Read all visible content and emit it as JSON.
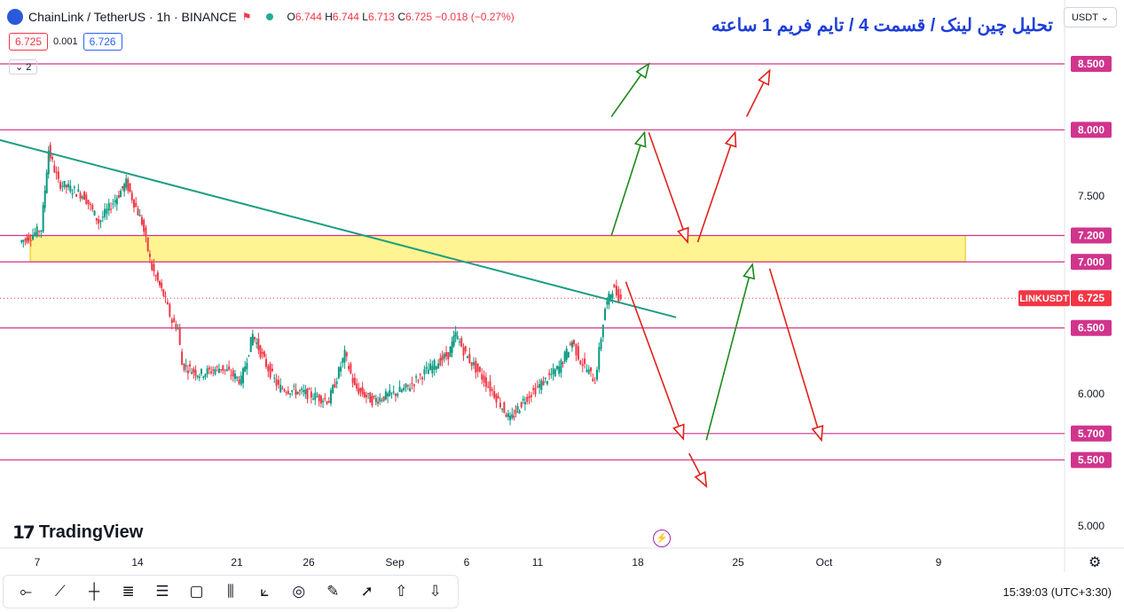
{
  "header": {
    "symbol": "ChainLink / TetherUS · 1h · BINANCE",
    "open_label": "O",
    "open": "6.744",
    "high_label": "H",
    "high": "6.744",
    "low_label": "L",
    "low": "6.713",
    "close_label": "C",
    "close": "6.725",
    "change": "−0.018 (−0.27%)"
  },
  "trade": {
    "sell": "6.725",
    "spread": "0.001",
    "buy": "6.726"
  },
  "layers_badge": "2",
  "title": "تحلیل چین لینک / قسمت 4 / تایم فریم 1 ساعته",
  "currency": "USDT",
  "brand": "TradingView",
  "clock": "15:39:03",
  "timezone": "(UTC+3:30)",
  "toolbar_icons": [
    "crosshair-icon",
    "trendline-icon",
    "vertical-line-icon",
    "fib-icon",
    "channel-icon",
    "rectangle-icon",
    "pitchfork-icon",
    "pattern-icon",
    "target-icon",
    "brush-icon",
    "arrow-icon",
    "arrow-up-icon",
    "arrow-down-icon"
  ],
  "colors": {
    "levels": "#d1348c",
    "trendline": "#1e9e82",
    "zone": "#fff176",
    "bull_arrow": "#1b8a1b",
    "bear_arrow": "#e0201b",
    "title": "#1e3fd8",
    "last_price": "#f23645"
  },
  "chart_data": {
    "type": "candlestick",
    "symbol": "LINKUSDT",
    "last_price": 6.725,
    "ylim": [
      4.85,
      8.7
    ],
    "y_ticks": [
      5.0,
      5.5,
      5.7,
      6.0,
      6.5,
      7.0,
      7.2,
      7.5,
      8.0,
      8.5
    ],
    "y_tick_labels": [
      "5.000",
      "5.500",
      "5.700",
      "6.000",
      "6.500",
      "7.000",
      "7.200",
      "7.500",
      "8.000",
      "8.500"
    ],
    "highlighted_levels": [
      8.5,
      8.0,
      7.2,
      7.0,
      6.5,
      5.7,
      5.5
    ],
    "x_labels": [
      "7",
      "14",
      "21",
      "26",
      "Sep",
      "6",
      "11",
      "18",
      "25",
      "Oct",
      "9"
    ],
    "zone": {
      "from": 7.0,
      "to": 7.2
    },
    "price_path": [
      [
        7.0,
        7.15
      ],
      [
        7.5,
        7.18
      ],
      [
        8.5,
        7.25
      ],
      [
        9.0,
        7.85
      ],
      [
        9.7,
        7.6
      ],
      [
        11.5,
        7.5
      ],
      [
        12.5,
        7.3
      ],
      [
        13.5,
        7.45
      ],
      [
        14.4,
        7.6
      ],
      [
        15.5,
        7.3
      ],
      [
        16.2,
        6.95
      ],
      [
        17.0,
        6.75
      ],
      [
        17.6,
        6.55
      ],
      [
        18.0,
        6.5
      ],
      [
        18.3,
        6.22
      ],
      [
        19.5,
        6.15
      ],
      [
        21.0,
        6.2
      ],
      [
        22.4,
        6.1
      ],
      [
        23.2,
        6.45
      ],
      [
        24.0,
        6.25
      ],
      [
        25.0,
        6.05
      ],
      [
        27.0,
        6.0
      ],
      [
        28.5,
        5.95
      ],
      [
        29.6,
        6.3
      ],
      [
        30.3,
        6.05
      ],
      [
        31.5,
        5.95
      ],
      [
        33.0,
        6.0
      ],
      [
        34.0,
        6.05
      ],
      [
        35.0,
        6.15
      ],
      [
        36.8,
        6.3
      ],
      [
        37.3,
        6.45
      ],
      [
        38.0,
        6.3
      ],
      [
        39.0,
        6.15
      ],
      [
        40.0,
        6.0
      ],
      [
        41.1,
        5.8
      ],
      [
        42.0,
        5.95
      ],
      [
        43.0,
        6.05
      ],
      [
        44.5,
        6.2
      ],
      [
        45.4,
        6.4
      ],
      [
        46.0,
        6.25
      ],
      [
        47.0,
        6.1
      ],
      [
        47.7,
        6.65
      ],
      [
        48.2,
        6.8
      ],
      [
        48.8,
        6.72
      ]
    ],
    "trendline": [
      [
        0.0,
        8.08
      ],
      [
        52.5,
        6.58
      ]
    ],
    "projections": [
      {
        "direction": "up",
        "points": [
          [
            48.0,
            7.2
          ],
          [
            50.3,
            7.98
          ],
          [
            48.0,
            8.1
          ],
          [
            50.6,
            8.5
          ]
        ]
      },
      {
        "direction": "down",
        "points": [
          [
            50.6,
            7.98
          ],
          [
            53.3,
            7.15
          ],
          [
            54.0,
            7.15
          ],
          [
            56.6,
            7.98
          ],
          [
            57.4,
            8.1
          ],
          [
            59.0,
            8.45
          ]
        ]
      },
      {
        "direction": "down",
        "points": [
          [
            49.0,
            6.85
          ],
          [
            53.0,
            5.66
          ],
          [
            53.4,
            5.55
          ],
          [
            54.6,
            5.3
          ]
        ]
      },
      {
        "direction": "up",
        "points": [
          [
            54.6,
            5.65
          ],
          [
            57.8,
            6.98
          ]
        ]
      },
      {
        "direction": "down",
        "points": [
          [
            59.0,
            6.95
          ],
          [
            62.6,
            5.65
          ]
        ]
      }
    ],
    "xlim": [
      5.5,
      79.5
    ]
  }
}
